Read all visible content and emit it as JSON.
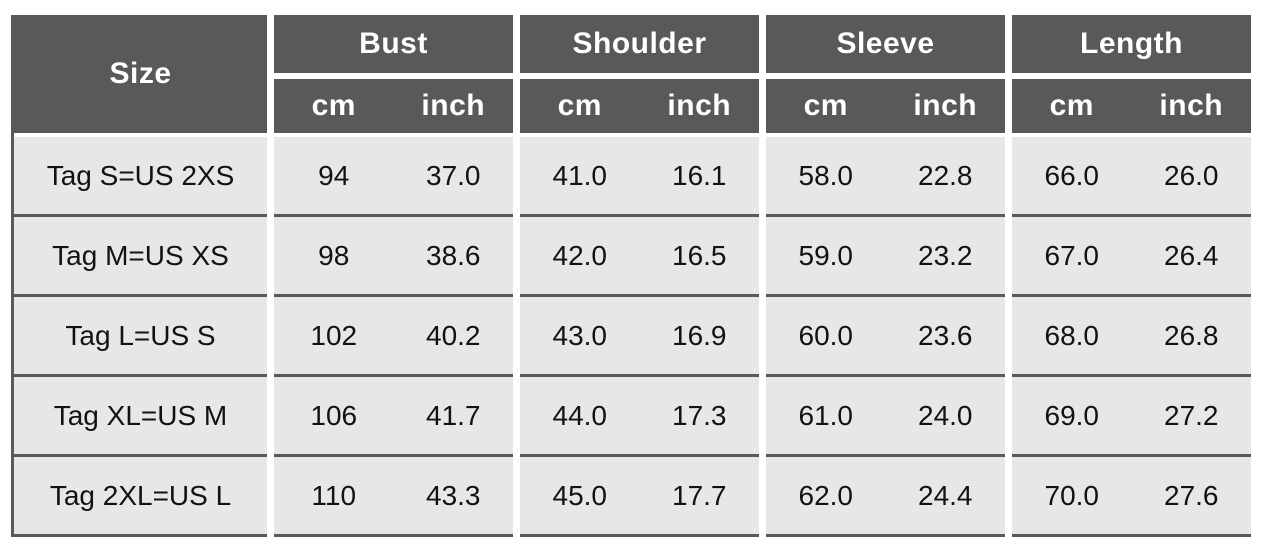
{
  "chart_data": {
    "type": "table",
    "title": "",
    "size_header": "Size",
    "groups": [
      {
        "label": "Bust",
        "units": [
          "cm",
          "inch"
        ]
      },
      {
        "label": "Shoulder",
        "units": [
          "cm",
          "inch"
        ]
      },
      {
        "label": "Sleeve",
        "units": [
          "cm",
          "inch"
        ]
      },
      {
        "label": "Length",
        "units": [
          "cm",
          "inch"
        ]
      }
    ],
    "columns": [
      "Size",
      "Bust cm",
      "Bust inch",
      "Shoulder cm",
      "Shoulder inch",
      "Sleeve cm",
      "Sleeve inch",
      "Length cm",
      "Length inch"
    ],
    "rows": [
      {
        "size": "Tag S=US 2XS",
        "values": [
          "94",
          "37.0",
          "41.0",
          "16.1",
          "58.0",
          "22.8",
          "66.0",
          "26.0"
        ]
      },
      {
        "size": "Tag M=US XS",
        "values": [
          "98",
          "38.6",
          "42.0",
          "16.5",
          "59.0",
          "23.2",
          "67.0",
          "26.4"
        ]
      },
      {
        "size": "Tag L=US S",
        "values": [
          "102",
          "40.2",
          "43.0",
          "16.9",
          "60.0",
          "23.6",
          "68.0",
          "26.8"
        ]
      },
      {
        "size": "Tag XL=US M",
        "values": [
          "106",
          "41.7",
          "44.0",
          "17.3",
          "61.0",
          "24.0",
          "69.0",
          "27.2"
        ]
      },
      {
        "size": "Tag 2XL=US L",
        "values": [
          "110",
          "43.3",
          "45.0",
          "17.7",
          "62.0",
          "24.4",
          "70.0",
          "27.6"
        ]
      }
    ],
    "colors": {
      "header_bg": "#59595b",
      "header_text": "#ffffff",
      "row_bg": "#e7e7e7",
      "body_text": "#121212",
      "separator": "#59595b",
      "background": "#ffffff"
    }
  }
}
